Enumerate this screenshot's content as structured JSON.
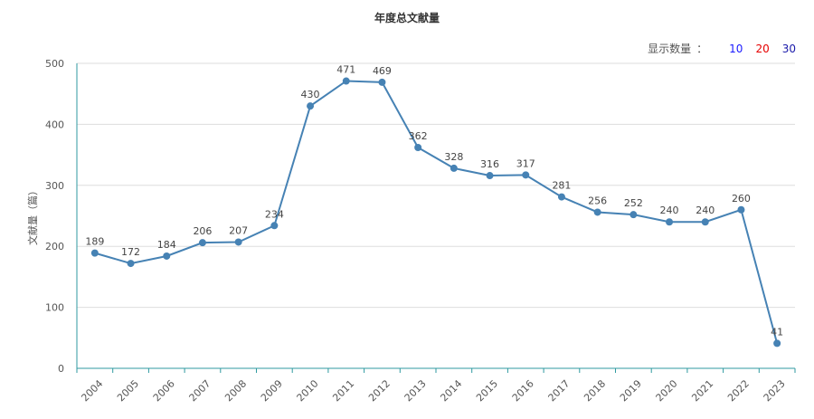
{
  "header": {
    "count_label": "显示数量",
    "count_separator": "：",
    "count_options": [
      {
        "label": "10",
        "color": "#1a1aff"
      },
      {
        "label": "20",
        "color": "#e60000"
      },
      {
        "label": "30",
        "color": "#1a1aaa"
      }
    ]
  },
  "colors": {
    "line": "#4682b4",
    "axis": "#2f9aa0",
    "grid": "#dddddd"
  },
  "chart_data": {
    "type": "line",
    "title": "年度总文献量",
    "xlabel": "",
    "ylabel": "文献量（篇）",
    "categories": [
      "2004",
      "2005",
      "2006",
      "2007",
      "2008",
      "2009",
      "2010",
      "2011",
      "2012",
      "2013",
      "2014",
      "2015",
      "2016",
      "2017",
      "2018",
      "2019",
      "2020",
      "2021",
      "2022",
      "2023"
    ],
    "values": [
      189,
      172,
      184,
      206,
      207,
      234,
      430,
      471,
      469,
      362,
      328,
      316,
      317,
      281,
      256,
      252,
      240,
      240,
      260,
      41
    ],
    "ylim": [
      0,
      500
    ],
    "yticks": [
      0,
      100,
      200,
      300,
      400,
      500
    ],
    "grid": true,
    "data_labels": true
  }
}
